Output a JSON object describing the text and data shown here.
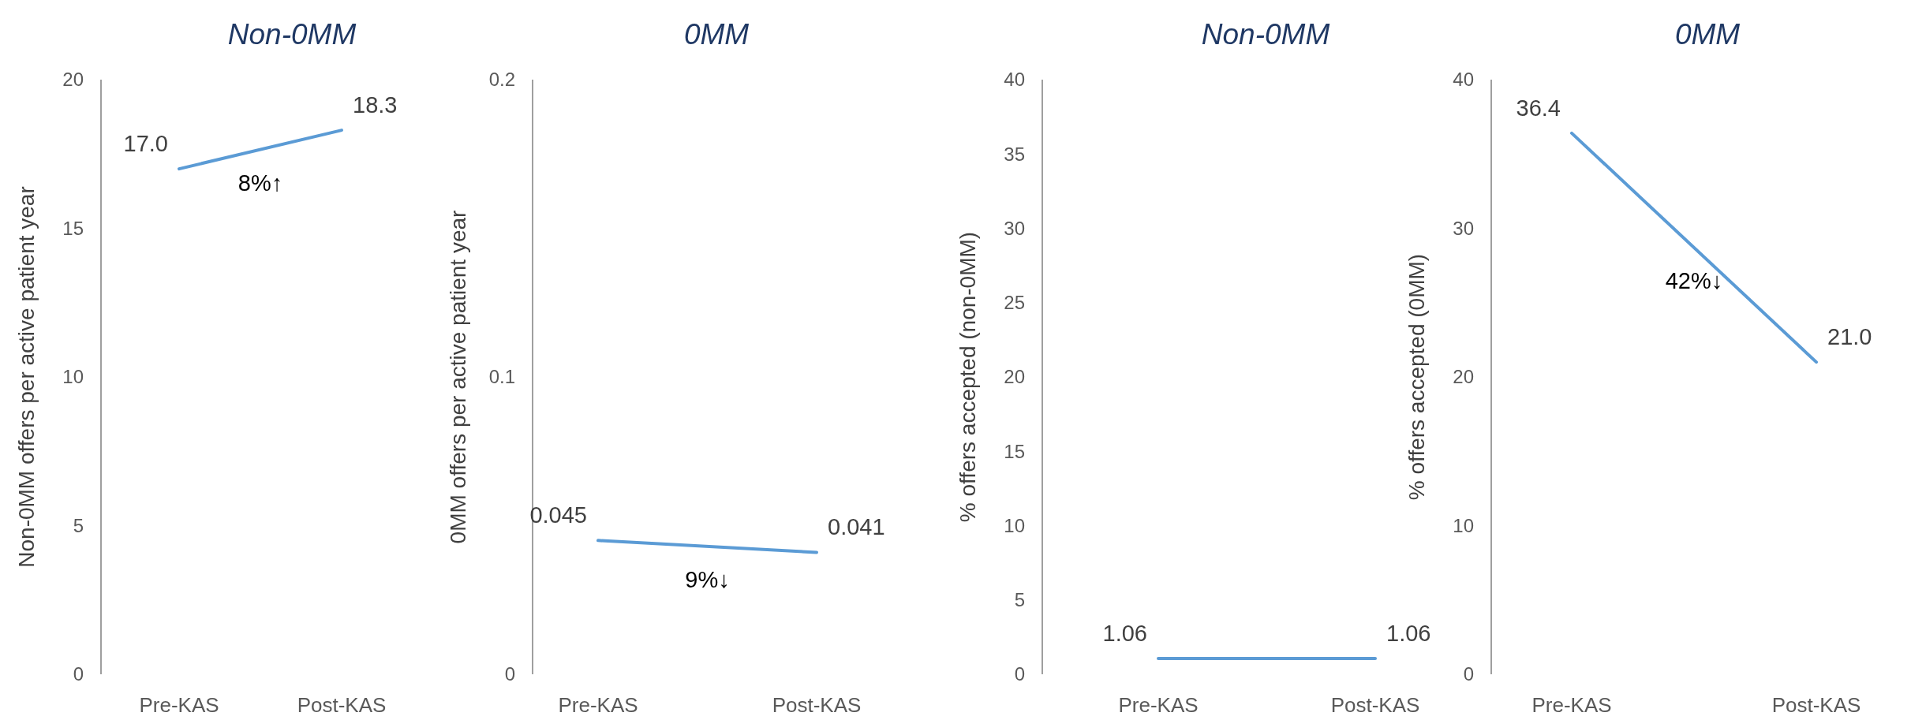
{
  "chart_data": [
    {
      "type": "line",
      "title": "Non-0MM",
      "ylabel": "Non-0MM offers per active patient year",
      "categories": [
        "Pre-KAS",
        "Post-KAS"
      ],
      "series": [
        {
          "color": "#5b9bd5",
          "values": [
            17.0,
            18.3
          ],
          "value_labels": [
            "17.0",
            "18.3"
          ]
        }
      ],
      "ylim": [
        0,
        20
      ],
      "yticks": [
        0,
        5,
        10,
        15,
        20
      ],
      "annotations": [
        "8%↑"
      ]
    },
    {
      "type": "line",
      "title": "0MM",
      "ylabel": "0MM offers per active patient year",
      "categories": [
        "Pre-KAS",
        "Post-KAS"
      ],
      "series": [
        {
          "color": "#5b9bd5",
          "values": [
            0.045,
            0.041
          ],
          "value_labels": [
            "0.045",
            "0.041"
          ]
        }
      ],
      "ylim": [
        0,
        0.2
      ],
      "yticks": [
        0,
        0.1,
        0.2
      ],
      "annotations": [
        "9%↓"
      ]
    },
    {
      "type": "line",
      "title": "Non-0MM",
      "ylabel": "% offers accepted (non-0MM)",
      "categories": [
        "Pre-KAS",
        "Post-KAS"
      ],
      "series": [
        {
          "color": "#5b9bd5",
          "values": [
            1.06,
            1.06
          ],
          "value_labels": [
            "1.06",
            "1.06"
          ]
        }
      ],
      "ylim": [
        0,
        40
      ],
      "yticks": [
        0,
        5,
        10,
        15,
        20,
        25,
        30,
        35,
        40
      ]
    },
    {
      "type": "line",
      "title": "0MM",
      "ylabel": "% offers accepted (0MM)",
      "categories": [
        "Pre-KAS",
        "Post-KAS"
      ],
      "series": [
        {
          "color": "#5b9bd5",
          "values": [
            36.4,
            21.0
          ],
          "value_labels": [
            "36.4",
            "21.0"
          ]
        }
      ],
      "ylim": [
        0,
        40
      ],
      "yticks": [
        0,
        10,
        20,
        30,
        40
      ],
      "annotations": [
        "42%↓"
      ]
    }
  ]
}
